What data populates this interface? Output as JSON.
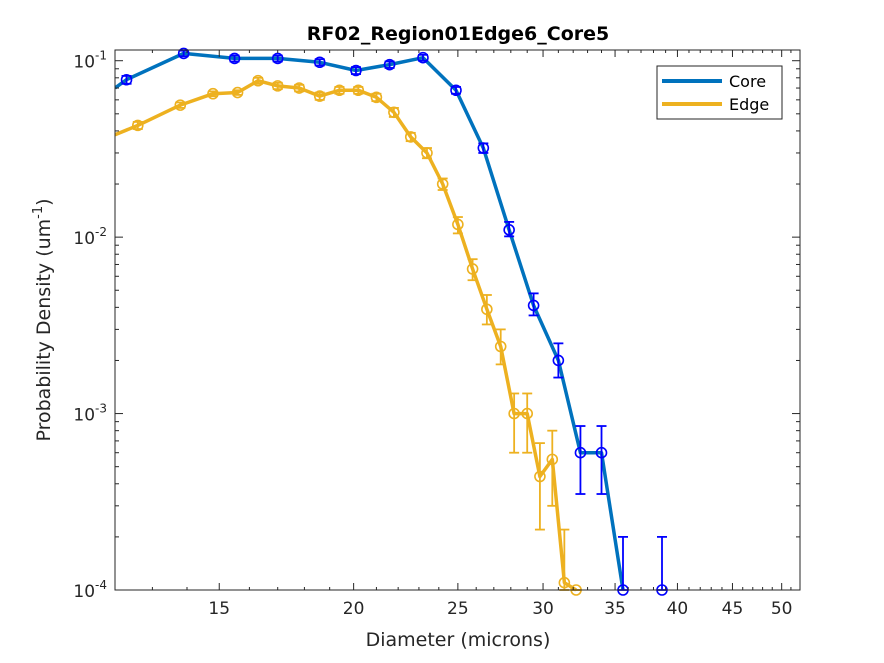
{
  "chart_data": {
    "type": "line",
    "title": "RF02_Region01Edge6_Core5",
    "xlabel": "Diameter (microns)",
    "ylabel": "Probability Density (um",
    "ylabel_sup": "-1",
    "ylabel_end": ")",
    "xscale": "log",
    "yscale": "log",
    "xlim": [
      12,
      52
    ],
    "ylim": [
      0.0001,
      0.115
    ],
    "x_ticks": [
      15,
      20,
      25,
      30,
      35,
      40,
      45,
      50
    ],
    "x_tick_labels": [
      "15",
      "20",
      "25",
      "30",
      "35",
      "40",
      "45",
      "50"
    ],
    "y_ticks": [
      0.0001,
      0.001,
      0.01,
      0.1
    ],
    "y_tick_base": [
      "10",
      "10",
      "10",
      "10"
    ],
    "y_tick_exp": [
      "-4",
      "-3",
      "-2",
      "-1"
    ],
    "grid": false,
    "legend_position": "top-right",
    "series": [
      {
        "name": "Core",
        "color": "#0072BD",
        "marker_color": "#0000FF",
        "x_start": 12,
        "y_start": 0.07,
        "x": [
          12.3,
          13.9,
          15.5,
          17.0,
          18.6,
          20.1,
          21.6,
          23.2,
          24.9,
          26.4,
          27.9,
          29.4,
          31.0,
          32.5,
          34.0,
          35.6,
          38.7
        ],
        "y": [
          0.078,
          0.11,
          0.103,
          0.103,
          0.098,
          0.088,
          0.095,
          0.104,
          0.068,
          0.032,
          0.011,
          0.0041,
          0.002,
          0.0006,
          0.0006,
          0.0001,
          0.0001
        ],
        "err_low": [
          0.074,
          0.106,
          0.099,
          0.099,
          0.094,
          0.084,
          0.091,
          0.1,
          0.065,
          0.03,
          0.0101,
          0.0036,
          0.0016,
          0.00035,
          0.00035,
          0.0001,
          0.0001
        ],
        "err_high": [
          0.082,
          0.114,
          0.107,
          0.107,
          0.102,
          0.092,
          0.099,
          0.108,
          0.071,
          0.034,
          0.0122,
          0.0048,
          0.0025,
          0.00085,
          0.00085,
          0.0002,
          0.0002
        ],
        "plot_line": [
          true,
          true,
          true,
          true,
          true,
          true,
          true,
          true,
          true,
          true,
          true,
          true,
          true,
          true,
          true,
          true,
          false
        ]
      },
      {
        "name": "Edge",
        "color": "#EDB120",
        "marker_color": "#EDB120",
        "x_start": 12,
        "y_start": 0.038,
        "x": [
          12.6,
          13.8,
          14.8,
          15.6,
          16.3,
          17.0,
          17.8,
          18.6,
          19.4,
          20.2,
          21.0,
          21.8,
          22.6,
          23.4,
          24.2,
          25.0,
          25.8,
          26.6,
          27.4,
          28.2,
          29.0,
          29.8,
          30.6,
          31.4,
          32.2
        ],
        "y": [
          0.043,
          0.056,
          0.065,
          0.066,
          0.077,
          0.072,
          0.07,
          0.063,
          0.068,
          0.068,
          0.062,
          0.051,
          0.037,
          0.03,
          0.02,
          0.0118,
          0.0066,
          0.0039,
          0.0024,
          0.001,
          0.001,
          0.00044,
          0.00055,
          0.00011,
          0.0001
        ],
        "err_low": [
          0.041,
          0.054,
          0.063,
          0.064,
          0.074,
          0.069,
          0.067,
          0.06,
          0.065,
          0.065,
          0.059,
          0.048,
          0.035,
          0.028,
          0.0185,
          0.0105,
          0.0057,
          0.0032,
          0.0019,
          0.0006,
          0.0006,
          0.00022,
          0.0003,
          0.0001,
          0.0001
        ],
        "err_high": [
          0.045,
          0.058,
          0.067,
          0.068,
          0.08,
          0.075,
          0.073,
          0.066,
          0.071,
          0.071,
          0.065,
          0.054,
          0.039,
          0.032,
          0.0215,
          0.013,
          0.0075,
          0.0047,
          0.003,
          0.0013,
          0.0013,
          0.00068,
          0.0008,
          0.00022,
          0.0001
        ]
      }
    ]
  }
}
